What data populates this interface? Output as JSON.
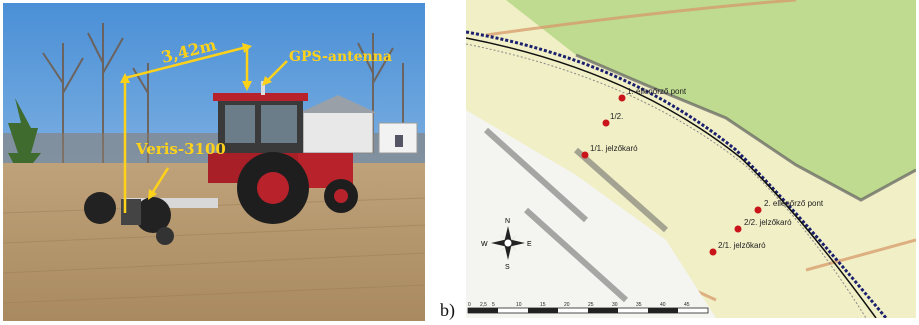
{
  "photo": {
    "labels": {
      "distance": "3,42m",
      "gps": "GPS-antenna",
      "sensor": "Veris-3100"
    }
  },
  "map": {
    "points": [
      {
        "label": "1. ellenőrző pont"
      },
      {
        "label": "1/2."
      },
      {
        "label": "1/1. jelzőkaró"
      },
      {
        "label": "2. ellenőrző pont"
      },
      {
        "label": "2/2. jelzőkaró"
      },
      {
        "label": "2/1. jelzőkaró"
      }
    ],
    "compass": {
      "n": "N",
      "e": "E",
      "s": "S",
      "w": "W"
    },
    "scale_ticks": [
      "0",
      "2,5",
      "5",
      "10",
      "15",
      "20",
      "25",
      "30",
      "35",
      "40",
      "45"
    ],
    "colors": {
      "points": "#c8141a",
      "track": "#1a1f6e",
      "forest": "#b8d98a",
      "field": "#f3f0c8"
    }
  },
  "caption_b": "b)"
}
